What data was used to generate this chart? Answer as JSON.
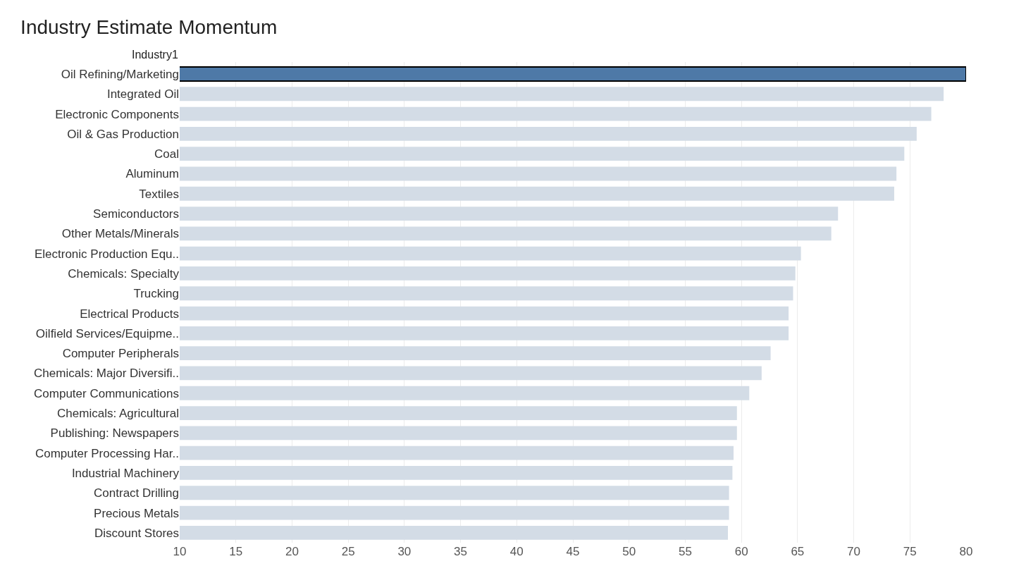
{
  "chart_data": {
    "type": "bar",
    "orientation": "horizontal",
    "title": "Industry Estimate Momentum",
    "ylabel": "Industry1",
    "categories": [
      "Oil Refining/Marketing",
      "Integrated Oil",
      "Electronic Components",
      "Oil & Gas Production",
      "Coal",
      "Aluminum",
      "Textiles",
      "Semiconductors",
      "Other Metals/Minerals",
      "Electronic Production Equ..",
      "Chemicals: Specialty",
      "Trucking",
      "Electrical Products",
      "Oilfield Services/Equipme..",
      "Computer Peripherals",
      "Chemicals: Major Diversifi..",
      "Computer Communications",
      "Chemicals: Agricultural",
      "Publishing: Newspapers",
      "Computer Processing Har..",
      "Industrial Machinery",
      "Contract Drilling",
      "Precious Metals",
      "Discount Stores"
    ],
    "values": [
      80.0,
      78.0,
      76.9,
      75.6,
      74.5,
      73.8,
      73.6,
      68.6,
      68.0,
      65.3,
      64.8,
      64.6,
      64.2,
      64.2,
      62.6,
      61.8,
      60.7,
      59.6,
      59.6,
      59.3,
      59.2,
      58.9,
      58.9,
      58.8
    ],
    "colors": [
      "#4e79a7",
      "#d3dce6",
      "#d3dce6",
      "#d3dce6",
      "#d3dce6",
      "#d3dce6",
      "#d3dce6",
      "#d3dce6",
      "#d3dce6",
      "#d3dce6",
      "#d3dce6",
      "#d3dce6",
      "#d3dce6",
      "#d3dce6",
      "#d3dce6",
      "#d3dce6",
      "#d3dce6",
      "#d3dce6",
      "#d3dce6",
      "#d3dce6",
      "#d3dce6",
      "#d3dce6",
      "#d3dce6",
      "#d3dce6"
    ],
    "xlim": [
      10,
      80
    ],
    "xticks": [
      10,
      15,
      20,
      25,
      30,
      35,
      40,
      45,
      50,
      55,
      60,
      65,
      70,
      75,
      80
    ],
    "grid": "x",
    "legend": false
  }
}
